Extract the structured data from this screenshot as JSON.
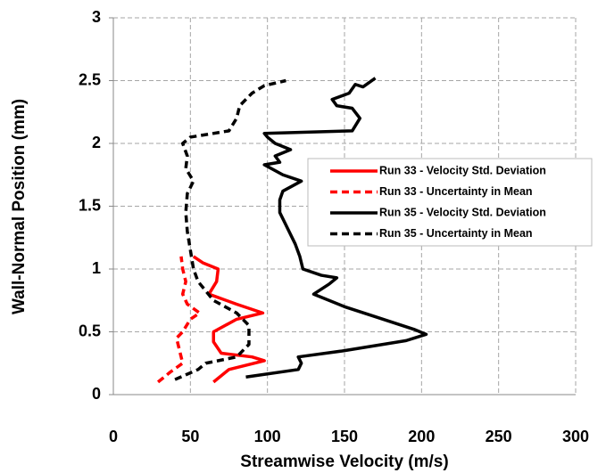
{
  "chart_data": {
    "type": "line",
    "x_label": "Streamwise Velocity (m/s)",
    "y_label": "Wall-Normal Position (mm)",
    "xlim": [
      0,
      300
    ],
    "xticks": [
      0,
      50,
      100,
      150,
      200,
      250,
      300
    ],
    "ylim": [
      0,
      3
    ],
    "yticks": [
      0,
      0.5,
      1,
      1.5,
      2,
      2.5,
      3
    ],
    "grid": true,
    "legend": "right",
    "series": [
      {
        "name": "Run 33 - Velocity Std. Deviation",
        "color": "#ff0000",
        "dash": false,
        "x": [
          65,
          75,
          98,
          90,
          70,
          65,
          65,
          80,
          97,
          80,
          62,
          67,
          68,
          58,
          52
        ],
        "values": [
          0.1,
          0.2,
          0.27,
          0.3,
          0.33,
          0.42,
          0.5,
          0.6,
          0.65,
          0.72,
          0.8,
          0.9,
          1.0,
          1.05,
          1.1
        ]
      },
      {
        "name": "Run 33 - Uncertainty in Mean",
        "color": "#ff0000",
        "dash": true,
        "x": [
          29,
          37,
          45,
          43,
          41,
          45,
          50,
          56,
          48,
          45,
          47,
          45,
          44
        ],
        "values": [
          0.1,
          0.18,
          0.25,
          0.35,
          0.45,
          0.5,
          0.6,
          0.65,
          0.72,
          0.8,
          0.9,
          1.0,
          1.1
        ]
      },
      {
        "name": "Run 35 - Velocity Std. Deviation",
        "color": "#000000",
        "dash": false,
        "x": [
          86,
          120,
          122,
          120,
          150,
          190,
          203,
          195,
          170,
          150,
          130,
          140,
          145,
          135,
          123,
          121,
          118,
          112,
          108,
          108,
          110,
          122,
          110,
          98,
          108,
          105,
          115,
          105,
          100,
          98,
          155,
          160,
          155,
          145,
          142,
          153,
          157,
          162,
          170
        ],
        "values": [
          0.14,
          0.2,
          0.25,
          0.3,
          0.35,
          0.43,
          0.48,
          0.52,
          0.62,
          0.7,
          0.8,
          0.88,
          0.93,
          0.95,
          1.0,
          1.1,
          1.2,
          1.35,
          1.45,
          1.55,
          1.62,
          1.7,
          1.75,
          1.83,
          1.85,
          1.9,
          1.95,
          2.0,
          2.05,
          2.08,
          2.1,
          2.2,
          2.28,
          2.3,
          2.35,
          2.4,
          2.47,
          2.45,
          2.52
        ]
      },
      {
        "name": "Run 35 - Uncertainty in Mean",
        "color": "#000000",
        "dash": true,
        "x": [
          40,
          55,
          60,
          80,
          88,
          88,
          80,
          65,
          55,
          52,
          50,
          48,
          47,
          48,
          52,
          47,
          48,
          45,
          50,
          75,
          80,
          82,
          90,
          98,
          112
        ],
        "values": [
          0.12,
          0.2,
          0.25,
          0.3,
          0.4,
          0.55,
          0.65,
          0.75,
          0.9,
          1.0,
          1.15,
          1.3,
          1.45,
          1.6,
          1.7,
          1.8,
          1.9,
          2.0,
          2.05,
          2.1,
          2.2,
          2.3,
          2.4,
          2.46,
          2.5
        ]
      }
    ]
  }
}
